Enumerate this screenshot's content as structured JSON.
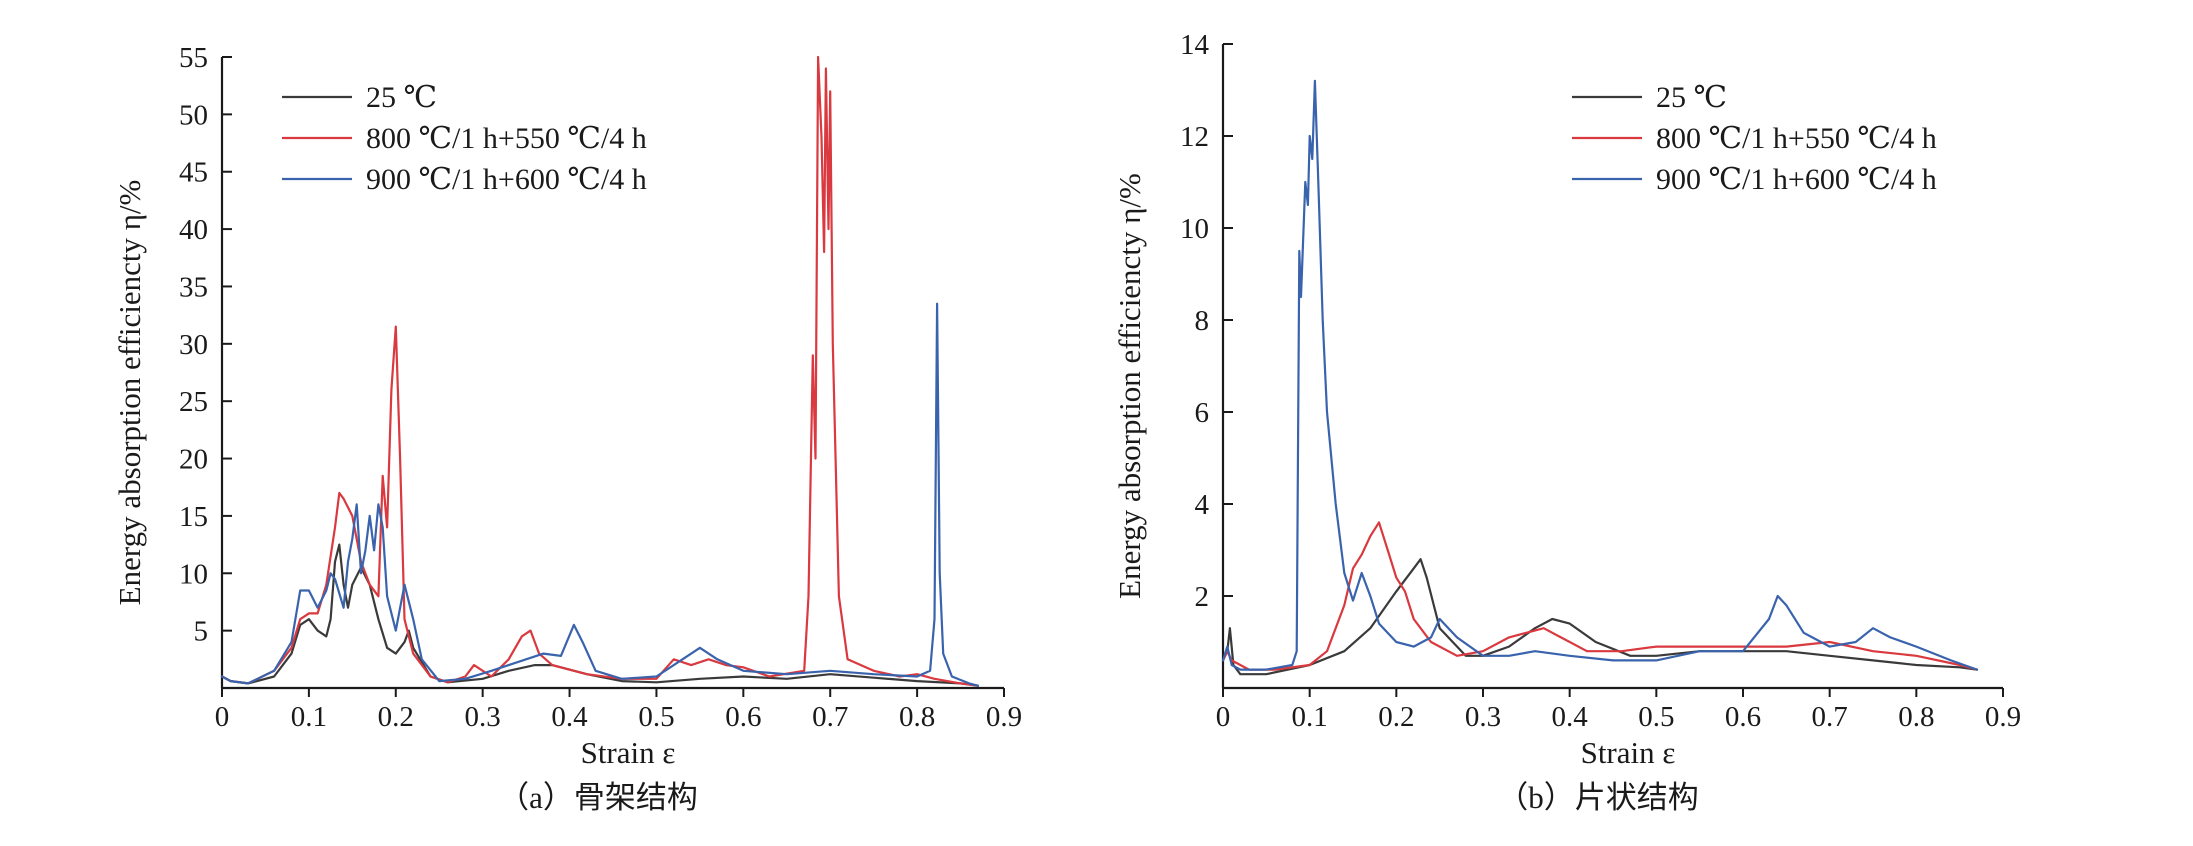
{
  "chart_data": [
    {
      "type": "line",
      "caption": "（a）骨架结构",
      "xlabel": "Strain ε",
      "ylabel": "Energy absorption efficiencty η/%",
      "xlim": [
        0,
        0.9
      ],
      "ylim": [
        0,
        55
      ],
      "xticks": [
        "0",
        "0.1",
        "0.2",
        "0.3",
        "0.4",
        "0.5",
        "0.6",
        "0.7",
        "0.8",
        "0.9"
      ],
      "yticks": [
        "5",
        "10",
        "15",
        "20",
        "25",
        "30",
        "35",
        "40",
        "45",
        "50",
        "55"
      ],
      "legend_position": "top-left",
      "series": [
        {
          "name": "25 ℃",
          "color": "#3a3a3a",
          "points": [
            [
              0.0,
              1.0
            ],
            [
              0.01,
              0.6
            ],
            [
              0.03,
              0.4
            ],
            [
              0.06,
              1.0
            ],
            [
              0.08,
              3.0
            ],
            [
              0.09,
              5.5
            ],
            [
              0.1,
              6.0
            ],
            [
              0.11,
              5.0
            ],
            [
              0.12,
              4.5
            ],
            [
              0.125,
              6.0
            ],
            [
              0.13,
              11.0
            ],
            [
              0.135,
              12.5
            ],
            [
              0.14,
              9.0
            ],
            [
              0.145,
              7.0
            ],
            [
              0.15,
              9.0
            ],
            [
              0.16,
              10.5
            ],
            [
              0.17,
              9.0
            ],
            [
              0.18,
              6.0
            ],
            [
              0.19,
              3.5
            ],
            [
              0.2,
              3.0
            ],
            [
              0.21,
              4.0
            ],
            [
              0.215,
              5.0
            ],
            [
              0.22,
              3.5
            ],
            [
              0.24,
              1.0
            ],
            [
              0.26,
              0.5
            ],
            [
              0.3,
              0.8
            ],
            [
              0.33,
              1.5
            ],
            [
              0.36,
              2.0
            ],
            [
              0.38,
              2.0
            ],
            [
              0.42,
              1.2
            ],
            [
              0.46,
              0.6
            ],
            [
              0.5,
              0.5
            ],
            [
              0.55,
              0.8
            ],
            [
              0.6,
              1.0
            ],
            [
              0.65,
              0.8
            ],
            [
              0.7,
              1.2
            ],
            [
              0.75,
              0.9
            ],
            [
              0.8,
              0.6
            ],
            [
              0.85,
              0.4
            ],
            [
              0.87,
              0.2
            ]
          ]
        },
        {
          "name": "800 ℃/1 h+550 ℃/4 h",
          "color": "#d9393f",
          "points": [
            [
              0.0,
              1.0
            ],
            [
              0.01,
              0.6
            ],
            [
              0.03,
              0.4
            ],
            [
              0.06,
              1.5
            ],
            [
              0.08,
              3.5
            ],
            [
              0.09,
              6.0
            ],
            [
              0.1,
              6.5
            ],
            [
              0.11,
              6.5
            ],
            [
              0.12,
              9.0
            ],
            [
              0.13,
              14.0
            ],
            [
              0.135,
              17.0
            ],
            [
              0.14,
              16.5
            ],
            [
              0.15,
              15.0
            ],
            [
              0.16,
              11.0
            ],
            [
              0.17,
              9.0
            ],
            [
              0.18,
              8.0
            ],
            [
              0.185,
              18.5
            ],
            [
              0.19,
              14.0
            ],
            [
              0.195,
              26.0
            ],
            [
              0.2,
              31.5
            ],
            [
              0.205,
              20.0
            ],
            [
              0.21,
              6.0
            ],
            [
              0.22,
              3.0
            ],
            [
              0.24,
              1.0
            ],
            [
              0.26,
              0.5
            ],
            [
              0.28,
              1.0
            ],
            [
              0.29,
              2.0
            ],
            [
              0.31,
              1.0
            ],
            [
              0.33,
              2.5
            ],
            [
              0.345,
              4.5
            ],
            [
              0.355,
              5.0
            ],
            [
              0.365,
              3.0
            ],
            [
              0.38,
              2.0
            ],
            [
              0.42,
              1.2
            ],
            [
              0.46,
              0.8
            ],
            [
              0.5,
              0.8
            ],
            [
              0.52,
              2.5
            ],
            [
              0.54,
              2.0
            ],
            [
              0.56,
              2.5
            ],
            [
              0.58,
              2.0
            ],
            [
              0.6,
              1.8
            ],
            [
              0.63,
              1.0
            ],
            [
              0.67,
              1.5
            ],
            [
              0.675,
              8.0
            ],
            [
              0.68,
              29.0
            ],
            [
              0.683,
              20.0
            ],
            [
              0.686,
              55.0
            ],
            [
              0.69,
              48.0
            ],
            [
              0.693,
              38.0
            ],
            [
              0.695,
              54.0
            ],
            [
              0.698,
              40.0
            ],
            [
              0.7,
              52.0
            ],
            [
              0.703,
              30.0
            ],
            [
              0.71,
              8.0
            ],
            [
              0.72,
              2.5
            ],
            [
              0.75,
              1.5
            ],
            [
              0.78,
              1.0
            ],
            [
              0.8,
              1.2
            ],
            [
              0.82,
              0.8
            ],
            [
              0.85,
              0.4
            ],
            [
              0.87,
              0.2
            ]
          ]
        },
        {
          "name": "900 ℃/1 h+600 ℃/4 h",
          "color": "#3a63ad",
          "points": [
            [
              0.0,
              1.0
            ],
            [
              0.01,
              0.6
            ],
            [
              0.03,
              0.4
            ],
            [
              0.06,
              1.5
            ],
            [
              0.08,
              4.0
            ],
            [
              0.09,
              8.5
            ],
            [
              0.1,
              8.5
            ],
            [
              0.11,
              7.0
            ],
            [
              0.12,
              8.5
            ],
            [
              0.125,
              10.0
            ],
            [
              0.13,
              9.5
            ],
            [
              0.14,
              7.0
            ],
            [
              0.145,
              11.0
            ],
            [
              0.15,
              13.0
            ],
            [
              0.155,
              16.0
            ],
            [
              0.16,
              10.0
            ],
            [
              0.165,
              12.0
            ],
            [
              0.17,
              15.0
            ],
            [
              0.175,
              12.0
            ],
            [
              0.18,
              16.0
            ],
            [
              0.185,
              14.0
            ],
            [
              0.19,
              8.0
            ],
            [
              0.2,
              5.0
            ],
            [
              0.21,
              9.0
            ],
            [
              0.22,
              6.0
            ],
            [
              0.23,
              2.5
            ],
            [
              0.25,
              0.6
            ],
            [
              0.28,
              0.8
            ],
            [
              0.31,
              1.5
            ],
            [
              0.33,
              2.0
            ],
            [
              0.35,
              2.5
            ],
            [
              0.37,
              3.0
            ],
            [
              0.39,
              2.8
            ],
            [
              0.405,
              5.5
            ],
            [
              0.415,
              4.0
            ],
            [
              0.43,
              1.5
            ],
            [
              0.46,
              0.8
            ],
            [
              0.5,
              1.0
            ],
            [
              0.52,
              2.0
            ],
            [
              0.55,
              3.5
            ],
            [
              0.57,
              2.5
            ],
            [
              0.6,
              1.5
            ],
            [
              0.65,
              1.2
            ],
            [
              0.7,
              1.5
            ],
            [
              0.75,
              1.2
            ],
            [
              0.8,
              1.0
            ],
            [
              0.815,
              1.5
            ],
            [
              0.82,
              6.0
            ],
            [
              0.823,
              33.5
            ],
            [
              0.826,
              10.0
            ],
            [
              0.83,
              3.0
            ],
            [
              0.84,
              1.0
            ],
            [
              0.86,
              0.4
            ],
            [
              0.87,
              0.2
            ]
          ]
        }
      ]
    },
    {
      "type": "line",
      "caption": "（b）片状结构",
      "xlabel": "Strain ε",
      "ylabel": "Energy absorption efficiencty η/%",
      "xlim": [
        0,
        0.9
      ],
      "ylim": [
        0,
        14
      ],
      "xticks": [
        "0",
        "0.1",
        "0.2",
        "0.3",
        "0.4",
        "0.5",
        "0.6",
        "0.7",
        "0.8",
        "0.9"
      ],
      "yticks": [
        "2",
        "4",
        "6",
        "8",
        "10",
        "12",
        "14"
      ],
      "legend_position": "top-right",
      "series": [
        {
          "name": "25 ℃",
          "color": "#3a3a3a",
          "points": [
            [
              0.0,
              0.6
            ],
            [
              0.005,
              0.8
            ],
            [
              0.008,
              1.3
            ],
            [
              0.012,
              0.5
            ],
            [
              0.02,
              0.3
            ],
            [
              0.05,
              0.3
            ],
            [
              0.1,
              0.5
            ],
            [
              0.14,
              0.8
            ],
            [
              0.17,
              1.3
            ],
            [
              0.2,
              2.1
            ],
            [
              0.22,
              2.6
            ],
            [
              0.228,
              2.8
            ],
            [
              0.235,
              2.4
            ],
            [
              0.25,
              1.3
            ],
            [
              0.28,
              0.7
            ],
            [
              0.3,
              0.7
            ],
            [
              0.33,
              0.9
            ],
            [
              0.36,
              1.3
            ],
            [
              0.38,
              1.5
            ],
            [
              0.4,
              1.4
            ],
            [
              0.43,
              1.0
            ],
            [
              0.47,
              0.7
            ],
            [
              0.5,
              0.7
            ],
            [
              0.55,
              0.8
            ],
            [
              0.6,
              0.8
            ],
            [
              0.65,
              0.8
            ],
            [
              0.7,
              0.7
            ],
            [
              0.75,
              0.6
            ],
            [
              0.8,
              0.5
            ],
            [
              0.85,
              0.45
            ],
            [
              0.87,
              0.4
            ]
          ]
        },
        {
          "name": "800 ℃/1 h+550 ℃/4 h",
          "color": "#d9393f",
          "points": [
            [
              0.0,
              0.6
            ],
            [
              0.005,
              0.8
            ],
            [
              0.01,
              0.6
            ],
            [
              0.03,
              0.4
            ],
            [
              0.06,
              0.4
            ],
            [
              0.1,
              0.5
            ],
            [
              0.12,
              0.8
            ],
            [
              0.14,
              1.8
            ],
            [
              0.15,
              2.6
            ],
            [
              0.16,
              2.9
            ],
            [
              0.17,
              3.3
            ],
            [
              0.18,
              3.6
            ],
            [
              0.19,
              3.0
            ],
            [
              0.2,
              2.4
            ],
            [
              0.21,
              2.1
            ],
            [
              0.22,
              1.5
            ],
            [
              0.24,
              1.0
            ],
            [
              0.27,
              0.7
            ],
            [
              0.3,
              0.8
            ],
            [
              0.33,
              1.1
            ],
            [
              0.35,
              1.2
            ],
            [
              0.37,
              1.3
            ],
            [
              0.39,
              1.1
            ],
            [
              0.42,
              0.8
            ],
            [
              0.46,
              0.8
            ],
            [
              0.5,
              0.9
            ],
            [
              0.55,
              0.9
            ],
            [
              0.6,
              0.9
            ],
            [
              0.65,
              0.9
            ],
            [
              0.7,
              1.0
            ],
            [
              0.75,
              0.8
            ],
            [
              0.8,
              0.7
            ],
            [
              0.85,
              0.5
            ],
            [
              0.87,
              0.4
            ]
          ]
        },
        {
          "name": "900 ℃/1 h+600 ℃/4 h",
          "color": "#3a63ad",
          "points": [
            [
              0.0,
              0.6
            ],
            [
              0.005,
              0.9
            ],
            [
              0.01,
              0.5
            ],
            [
              0.02,
              0.4
            ],
            [
              0.05,
              0.4
            ],
            [
              0.08,
              0.5
            ],
            [
              0.085,
              0.8
            ],
            [
              0.088,
              9.5
            ],
            [
              0.09,
              8.5
            ],
            [
              0.095,
              11.0
            ],
            [
              0.098,
              10.5
            ],
            [
              0.1,
              12.0
            ],
            [
              0.103,
              11.5
            ],
            [
              0.106,
              13.2
            ],
            [
              0.11,
              11.0
            ],
            [
              0.115,
              8.0
            ],
            [
              0.12,
              6.0
            ],
            [
              0.13,
              4.0
            ],
            [
              0.14,
              2.5
            ],
            [
              0.15,
              1.9
            ],
            [
              0.16,
              2.5
            ],
            [
              0.17,
              2.0
            ],
            [
              0.18,
              1.4
            ],
            [
              0.2,
              1.0
            ],
            [
              0.22,
              0.9
            ],
            [
              0.24,
              1.1
            ],
            [
              0.25,
              1.5
            ],
            [
              0.27,
              1.1
            ],
            [
              0.3,
              0.7
            ],
            [
              0.33,
              0.7
            ],
            [
              0.36,
              0.8
            ],
            [
              0.4,
              0.7
            ],
            [
              0.45,
              0.6
            ],
            [
              0.5,
              0.6
            ],
            [
              0.55,
              0.8
            ],
            [
              0.6,
              0.8
            ],
            [
              0.63,
              1.5
            ],
            [
              0.64,
              2.0
            ],
            [
              0.65,
              1.8
            ],
            [
              0.67,
              1.2
            ],
            [
              0.7,
              0.9
            ],
            [
              0.73,
              1.0
            ],
            [
              0.75,
              1.3
            ],
            [
              0.77,
              1.1
            ],
            [
              0.8,
              0.9
            ],
            [
              0.84,
              0.6
            ],
            [
              0.87,
              0.4
            ]
          ]
        }
      ]
    }
  ]
}
